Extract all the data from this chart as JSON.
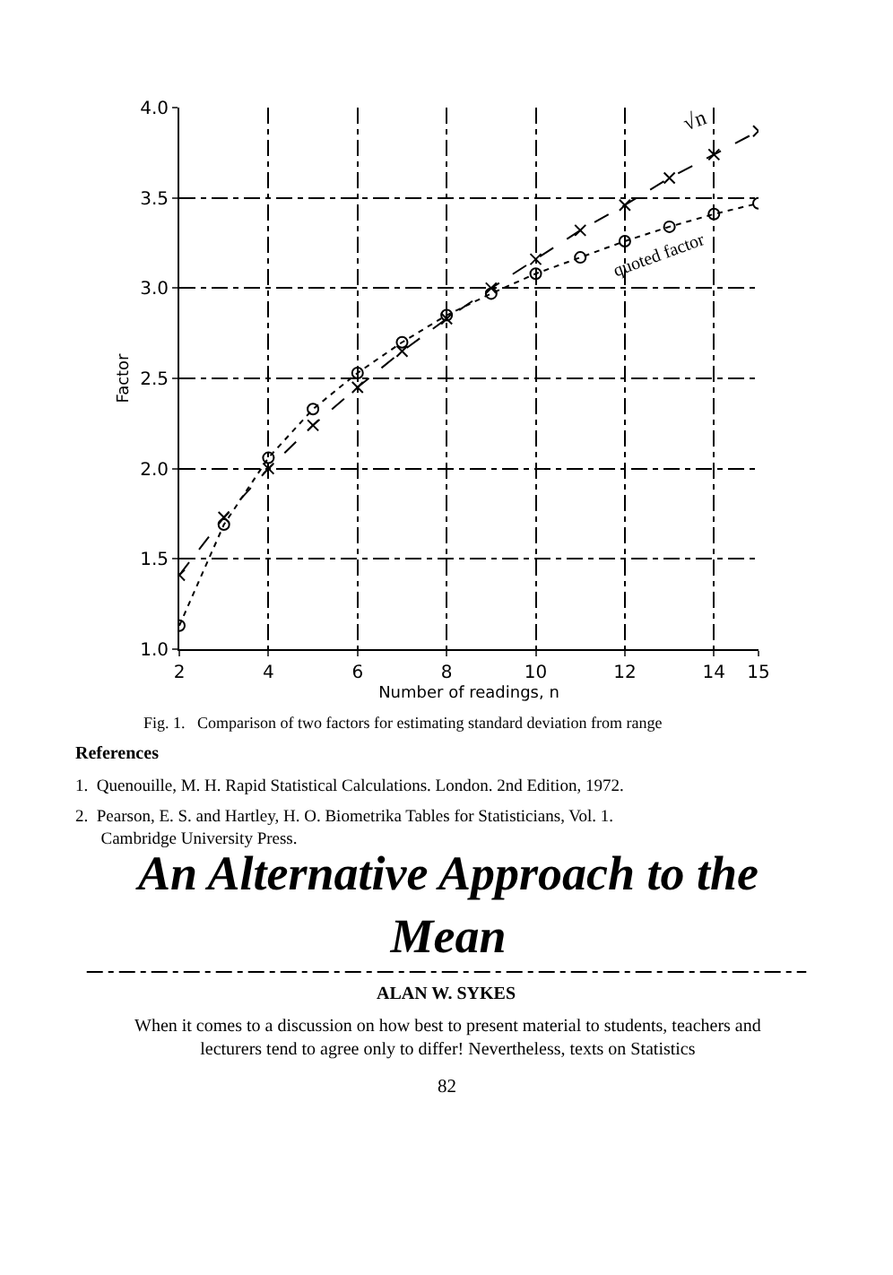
{
  "chart_data": {
    "type": "line",
    "xlabel": "Number of readings, n",
    "ylabel": "Factor",
    "x": [
      2,
      3,
      4,
      5,
      6,
      7,
      8,
      9,
      10,
      11,
      12,
      13,
      14,
      15
    ],
    "series": [
      {
        "name": "√n",
        "color": "#000000",
        "marker": "cross",
        "line_style": "dashed",
        "values": [
          1.41,
          1.73,
          2.0,
          2.24,
          2.45,
          2.65,
          2.83,
          3.0,
          3.16,
          3.32,
          3.46,
          3.61,
          3.74,
          3.87
        ]
      },
      {
        "name": "quoted factor",
        "color": "#000000",
        "marker": "circle",
        "line_style": "dotted",
        "values": [
          1.13,
          1.69,
          2.06,
          2.33,
          2.53,
          2.7,
          2.85,
          2.97,
          3.08,
          3.17,
          3.26,
          3.34,
          3.41,
          3.47
        ]
      }
    ],
    "xlim": [
      2,
      15
    ],
    "xticks": [
      2,
      4,
      6,
      8,
      10,
      12,
      14,
      15
    ],
    "ylim": [
      1,
      4
    ],
    "yticks": [
      {
        "value": 1,
        "label": "1.0"
      },
      {
        "value": 1.5,
        "label": "1.5"
      },
      {
        "value": 2,
        "label": "2.0"
      },
      {
        "value": 2.5,
        "label": "2.5"
      },
      {
        "value": 3,
        "label": "3.0"
      },
      {
        "value": 3.5,
        "label": "3.5"
      },
      {
        "value": 4,
        "label": "4.0"
      }
    ],
    "grid": true,
    "legend": false,
    "annotations": [
      "Fig. 1.   Comparison of two factors for estimating standard deviation from range",
      "References",
      "1.  Quenouille, M. H. Rapid Statistical Calculations. London. 2nd Edition, 1972.",
      "2.  Pearson, E. S. and Hartley, H. O. Biometrika Tables for Statisticians, Vol. 1. Cambridge University Press.",
      "An Alternative Approach to the Mean",
      "ALAN W. SYKES",
      "When it comes to a discussion on how best to present material to students, teachers and lecturers tend to agree only to differ! Nevertheless, texts on Statistics",
      "82"
    ]
  }
}
